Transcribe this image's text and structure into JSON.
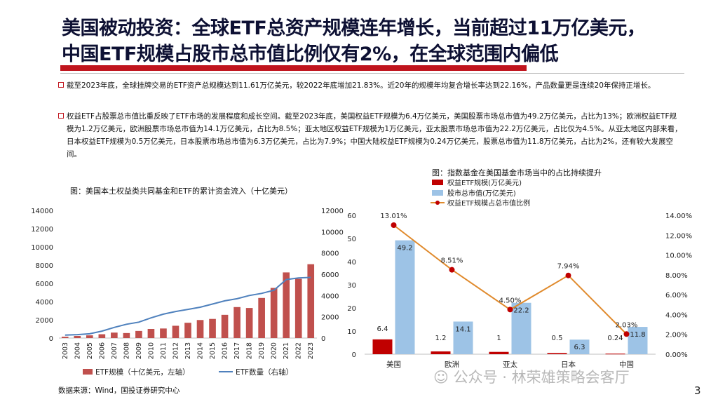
{
  "slide": {
    "title_line1": "美国被动投资：全球ETF总资产规模连年增长，当前超过11万亿美元，",
    "title_line2": "中国ETF规模占股市总市值比例仅有2%，在全球范围内偏低",
    "bullets": [
      "截至2023年底，全球挂牌交易的ETF资产总规模达到11.61万亿美元，较2022年底增加21.83%。近20年的规模年均复合增长率达到22.16%，产品数量更是连续20年保持正增长。",
      "权益ETF占股票总市值比重反映了ETF市场的发展程度和成长空间。截至2023年底，美国权益ETF规模为6.4万亿美元，美国股票市场总市值为49.2万亿美元，占比为13%；欧洲权益ETF规模为1.2万亿美元，欧洲股票市场总市值为14.1万亿美元，占比为8.5%；亚太地区权益ETF规模为1万亿美元，亚太股票市场总市值为22.2万亿美元，占比仅为4.5%。从亚太地区内部来看，日本权益ETF规模为0.5万亿美元，日本股票市场总市值为6.3万亿美元，占比为7.9%；中国大陆权益ETF规模为0.24万亿美元，股票总市值为11.8万亿美元，占比为2%，还有较大发展空间。"
    ],
    "source": "数据来源：Wind，国投证券研究中心",
    "watermark": "公众号 · 林荣雄策略会客厅",
    "page_number": "3"
  },
  "chart_data": [
    {
      "type": "bar",
      "caption": "图：美国本土权益类共同基金和ETF的累计资金流入（十亿美元）",
      "categories": [
        "2003",
        "2004",
        "2005",
        "2006",
        "2007",
        "2008",
        "2009",
        "2010",
        "2011",
        "2012",
        "2013",
        "2014",
        "2015",
        "2016",
        "2017",
        "2018",
        "2019",
        "2020",
        "2021",
        "2022",
        "2023"
      ],
      "series": [
        {
          "name": "ETF规模（十亿美元，左轴）",
          "type": "bar",
          "axis": "left",
          "color": "#c0504d",
          "values": [
            150,
            230,
            300,
            420,
            600,
            550,
            780,
            1000,
            1050,
            1350,
            1680,
            1980,
            2100,
            2550,
            3400,
            3300,
            4400,
            5500,
            7200,
            6500,
            8100
          ]
        },
        {
          "name": "ETF数量（右轴）",
          "type": "line",
          "axis": "right",
          "color": "#4f81bd",
          "values": [
            280,
            320,
            400,
            650,
            1000,
            1300,
            1500,
            1900,
            2250,
            2500,
            2700,
            2900,
            3200,
            3500,
            3700,
            4000,
            4200,
            4500,
            5500,
            5650,
            5700
          ]
        }
      ],
      "ylim_left": [
        0,
        14000
      ],
      "yticks_left": [
        0,
        2000,
        4000,
        6000,
        8000,
        10000,
        12000,
        14000
      ],
      "ylim_right": [
        0,
        12000
      ],
      "yticks_right": [
        0,
        2000,
        4000,
        6000,
        8000,
        10000,
        12000
      ],
      "legend": "bottom"
    },
    {
      "type": "bar",
      "caption": "图：指数基金在美国基金市场当中的占比持续提升",
      "categories": [
        "美国",
        "欧洲",
        "亚太",
        "日本",
        "中国"
      ],
      "series": [
        {
          "name": "权益ETF规模(万亿美元)",
          "type": "bar",
          "axis": "left",
          "color": "#c00000",
          "values": [
            6.4,
            1.2,
            1,
            0.5,
            0.24
          ],
          "labels": [
            "6.4",
            "1.2",
            "1",
            "0.5",
            "0.24"
          ]
        },
        {
          "name": "股市总市值(万亿美元)",
          "type": "bar",
          "axis": "left",
          "color": "#9dc3e6",
          "values": [
            49.2,
            14.1,
            22.2,
            6.3,
            11.8
          ],
          "labels": [
            "49.2",
            "14.1",
            "22.2",
            "6.3",
            "11.8"
          ]
        },
        {
          "name": "权益ETF规模占总市值比例",
          "type": "line",
          "axis": "right",
          "color": "#e08a2c",
          "marker_color": "#c00000",
          "values": [
            13.01,
            8.51,
            4.5,
            7.94,
            2.03
          ],
          "labels": [
            "13.01%",
            "8.51%",
            "4.50%",
            "7.94%",
            "2.03%"
          ]
        }
      ],
      "ylim_left": [
        0,
        60
      ],
      "yticks_left": [
        0,
        10,
        20,
        30,
        40,
        50,
        60
      ],
      "ylim_right": [
        0,
        14
      ],
      "yticks_right": [
        "0.00%",
        "2.00%",
        "4.00%",
        "6.00%",
        "8.00%",
        "10.00%",
        "12.00%",
        "14.00%"
      ],
      "legend": "top-left"
    }
  ]
}
